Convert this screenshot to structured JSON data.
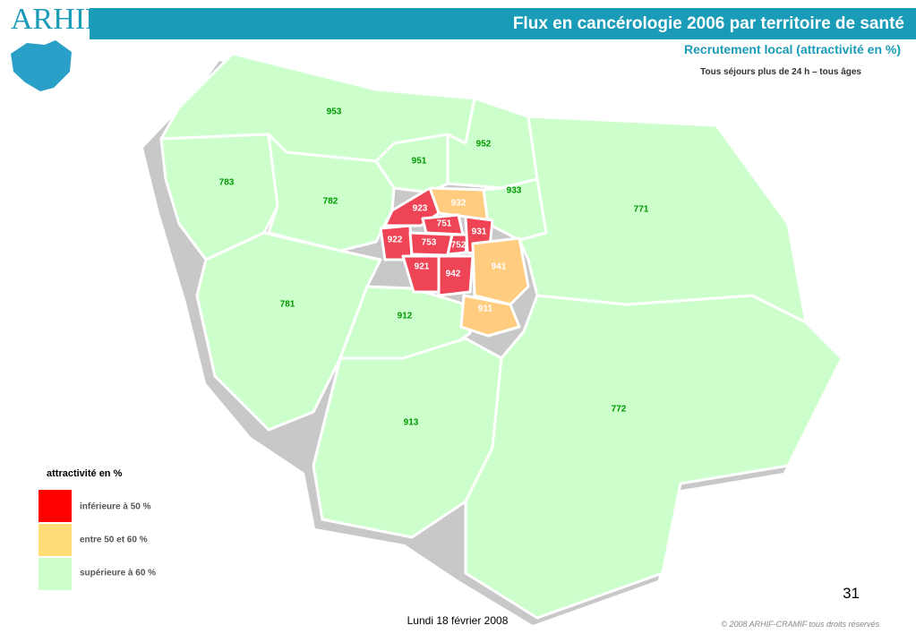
{
  "header": {
    "logo": "ARHIF",
    "title": "Flux en cancérologie 2006 par territoire de santé",
    "subtitle": "Recrutement local  (attractivité en %)",
    "note": "Tous séjours plus de 24 h – tous âges"
  },
  "map": {
    "regions": [
      {
        "label": "953",
        "color": "#ccffcc"
      },
      {
        "label": "952",
        "color": "#ccffcc"
      },
      {
        "label": "951",
        "color": "#ccffcc"
      },
      {
        "label": "933",
        "color": "#ccffcc"
      },
      {
        "label": "783",
        "color": "#ccffcc"
      },
      {
        "label": "782",
        "color": "#ccffcc"
      },
      {
        "label": "781",
        "color": "#ccffcc"
      },
      {
        "label": "912",
        "color": "#ccffcc"
      },
      {
        "label": "913",
        "color": "#ccffcc"
      },
      {
        "label": "772",
        "color": "#ccffcc"
      },
      {
        "label": "771",
        "color": "#ccffcc"
      },
      {
        "label": "932",
        "color": "#ffcc80"
      },
      {
        "label": "923",
        "color": "#ee4455"
      },
      {
        "label": "922",
        "color": "#ee4455"
      },
      {
        "label": "751",
        "color": "#ee4455"
      },
      {
        "label": "753",
        "color": "#ee4455"
      },
      {
        "label": "752",
        "color": "#ee4455"
      },
      {
        "label": "931",
        "color": "#ee4455"
      },
      {
        "label": "921",
        "color": "#ee4455"
      },
      {
        "label": "942",
        "color": "#ee4455"
      },
      {
        "label": "941",
        "color": "#ffcc80"
      },
      {
        "label": "911",
        "color": "#ffcc80"
      }
    ]
  },
  "legend": {
    "title": "attractivité en %",
    "items": [
      {
        "label": "inférieure à 50 %",
        "color": "#ff0000"
      },
      {
        "label": "entre 50 et  60 %",
        "color": "#ffdd77"
      },
      {
        "label": "supérieure à 60 %",
        "color": "#ccffcc"
      }
    ]
  },
  "footer": {
    "page": "31",
    "date": "Lundi 18 février 2008",
    "copyright": "© 2008 ARHIF-CRAMIF tous droits réservés"
  }
}
